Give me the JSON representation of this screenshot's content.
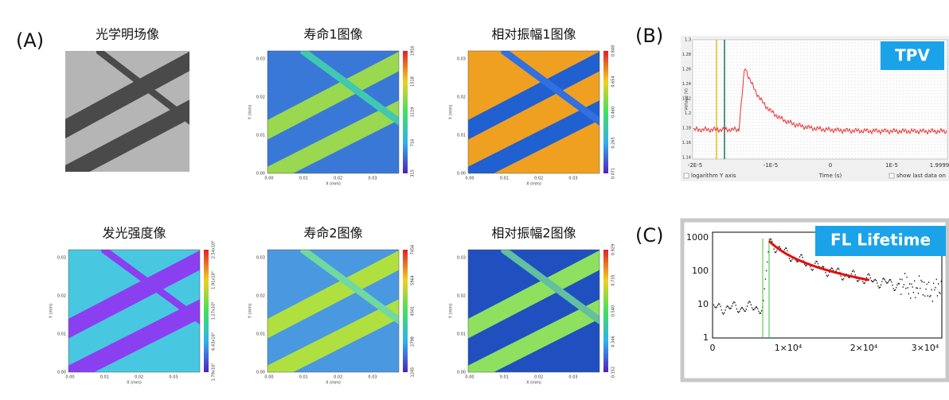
{
  "panel_labels": [
    "(A)",
    "(B)",
    "(C)"
  ],
  "maps": [
    {
      "title": "光学明场像"
    },
    {
      "title": "寿命1图像",
      "ylabel": "Y (mm)",
      "xlabel": "X (mm)",
      "yticks": [
        "0.00",
        "0.01",
        "0.02",
        "0.03"
      ],
      "xticks": [
        "0.00",
        "0.01",
        "0.02",
        "0.03"
      ],
      "cbar": [
        "1916",
        "1518",
        "1119",
        "716",
        "315"
      ]
    },
    {
      "title": "相对振幅1图像",
      "ylabel": "Y (mm)",
      "xlabel": "X (mm)",
      "yticks": [
        "0.00",
        "0.01",
        "0.02",
        "0.03"
      ],
      "xticks": [
        "0.00",
        "0.01",
        "0.02",
        "0.03"
      ],
      "cbar": [
        "0.848",
        "0.654",
        "0.460",
        "0.265",
        "0.071"
      ]
    },
    {
      "title": "发光强度像",
      "ylabel": "Y (mm)",
      "xlabel": "X (mm)",
      "yticks": [
        "0.00",
        "0.01",
        "0.02",
        "0.03"
      ],
      "xticks": [
        "0.00",
        "0.01",
        "0.02",
        "0.03"
      ],
      "cbar": [
        "2.54x10⁴",
        "1.91x10⁴",
        "1.27x10⁴",
        "6.43x10³",
        "1.79x10²"
      ]
    },
    {
      "title": "寿命2图像",
      "ylabel": "Y (mm)",
      "xlabel": "X (mm)",
      "yticks": [
        "0.00",
        "0.01",
        "0.02",
        "0.03"
      ],
      "xticks": [
        "0.00",
        "0.01",
        "0.02",
        "0.03"
      ],
      "cbar": [
        "7456",
        "5964",
        "4501",
        "2798",
        "1245"
      ]
    },
    {
      "title": "相对振幅2图像",
      "ylabel": "Y (mm)",
      "xlabel": "X (mm)",
      "yticks": [
        "0.00",
        "0.01",
        "0.02",
        "0.03"
      ],
      "xticks": [
        "0.00",
        "0.01",
        "0.02",
        "0.03"
      ],
      "cbar": [
        "0.929",
        "0.735",
        "0.540",
        "0.346",
        "0.152"
      ]
    }
  ],
  "tpv": {
    "badge": "TPV",
    "ylabel": "Voltage (V)",
    "xlabel": "Time (s)",
    "yticks": [
      "1.3",
      "1.28",
      "1.26",
      "1.24",
      "1.22",
      "1.2",
      "1.18",
      "1.16",
      "1.14"
    ],
    "xticks": [
      "-2E-5",
      "-1E-5",
      "0",
      "1E-5",
      "1.9999"
    ],
    "options": [
      "logarithm Y axis",
      "show last data on"
    ]
  },
  "fl": {
    "badge": "FL Lifetime",
    "yticks": [
      "1000",
      "100",
      "10",
      "1"
    ],
    "xticks": [
      "0",
      "1×10⁴",
      "2×10⁴",
      "3×10⁴"
    ]
  }
}
